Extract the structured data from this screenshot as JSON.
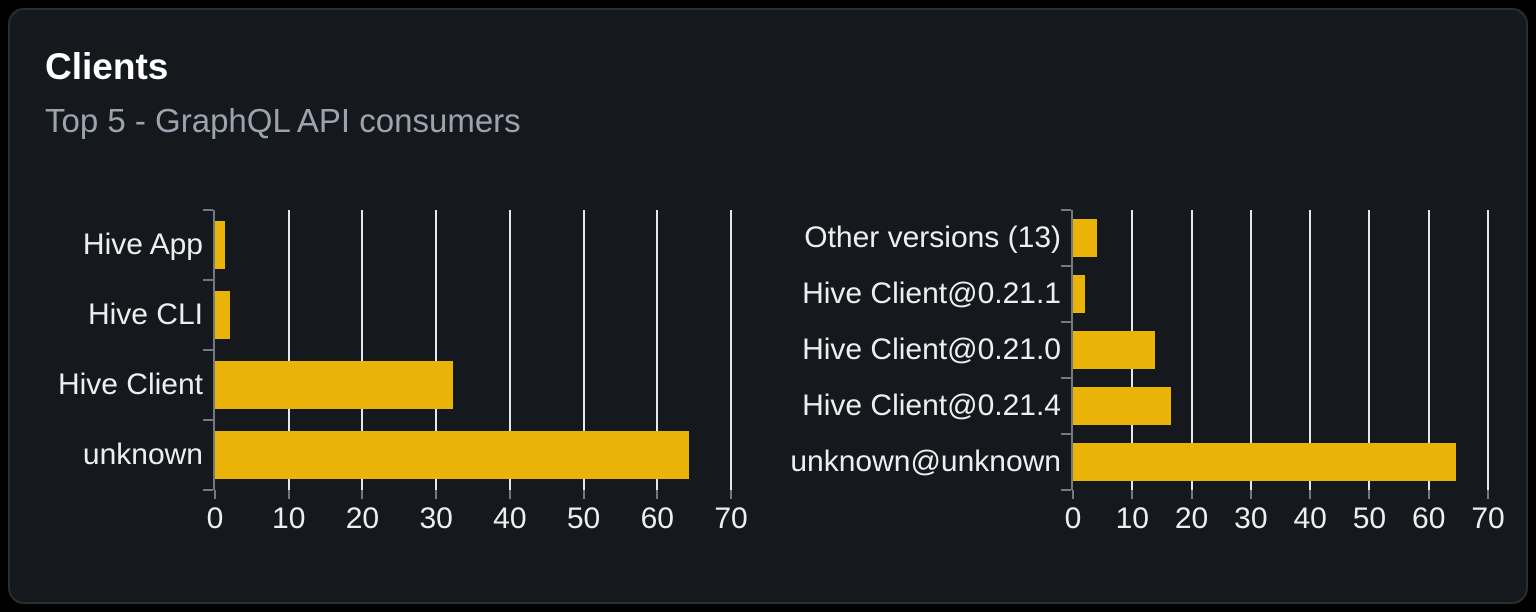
{
  "card": {
    "title": "Clients",
    "subtitle": "Top 5 - GraphQL API consumers"
  },
  "colors": {
    "page_bg": "#000000",
    "card_bg": "#15181c",
    "card_border": "#2a2d33",
    "title": "#ffffff",
    "subtitle": "#9ca3af",
    "bar": "#eab308",
    "grid_line": "#e3e7f0",
    "axis_line": "#74787f",
    "axis_text": "#eeeef0"
  },
  "chart_data": [
    {
      "type": "bar",
      "orientation": "horizontal",
      "categories": [
        "Hive App",
        "Hive CLI",
        "Hive Client",
        "unknown"
      ],
      "values": [
        1.3,
        2,
        32.3,
        64.3
      ],
      "xlim": [
        0,
        70
      ],
      "x_ticks": [
        0,
        10,
        20,
        30,
        40,
        50,
        60,
        70
      ],
      "grid": true,
      "legend": false
    },
    {
      "type": "bar",
      "orientation": "horizontal",
      "categories": [
        "Other versions (13)",
        "Hive Client@0.21.1",
        "Hive Client@0.21.0",
        "Hive Client@0.21.4",
        "unknown@unknown"
      ],
      "values": [
        4.1,
        2,
        13.9,
        16.6,
        64.6
      ],
      "xlim": [
        0,
        70
      ],
      "x_ticks": [
        0,
        10,
        20,
        30,
        40,
        50,
        60,
        70
      ],
      "grid": true,
      "legend": false
    }
  ]
}
